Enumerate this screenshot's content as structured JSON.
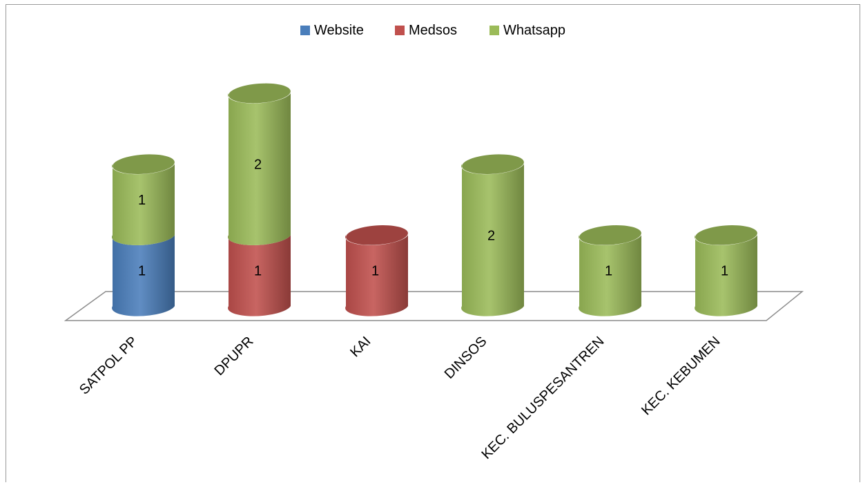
{
  "chart_data": {
    "type": "bar",
    "stacked": true,
    "style": "3d-cylinder",
    "categories": [
      "SATPOL PP",
      "DPUPR",
      "KAI",
      "DINSOS",
      "KEC. BULUSPESANTREN",
      "KEC. KEBUMEN"
    ],
    "series": [
      {
        "name": "Website",
        "values": [
          1,
          0,
          0,
          0,
          0,
          0
        ],
        "color": "#4a7ebb"
      },
      {
        "name": "Medsos",
        "values": [
          0,
          1,
          1,
          0,
          0,
          0
        ],
        "color": "#c0504d"
      },
      {
        "name": "Whatsapp",
        "values": [
          1,
          2,
          0,
          2,
          1,
          1
        ],
        "color": "#9bbb59"
      }
    ],
    "ylim": [
      0,
      3
    ],
    "legend": "top-center",
    "grid": false,
    "data_labels": true
  }
}
